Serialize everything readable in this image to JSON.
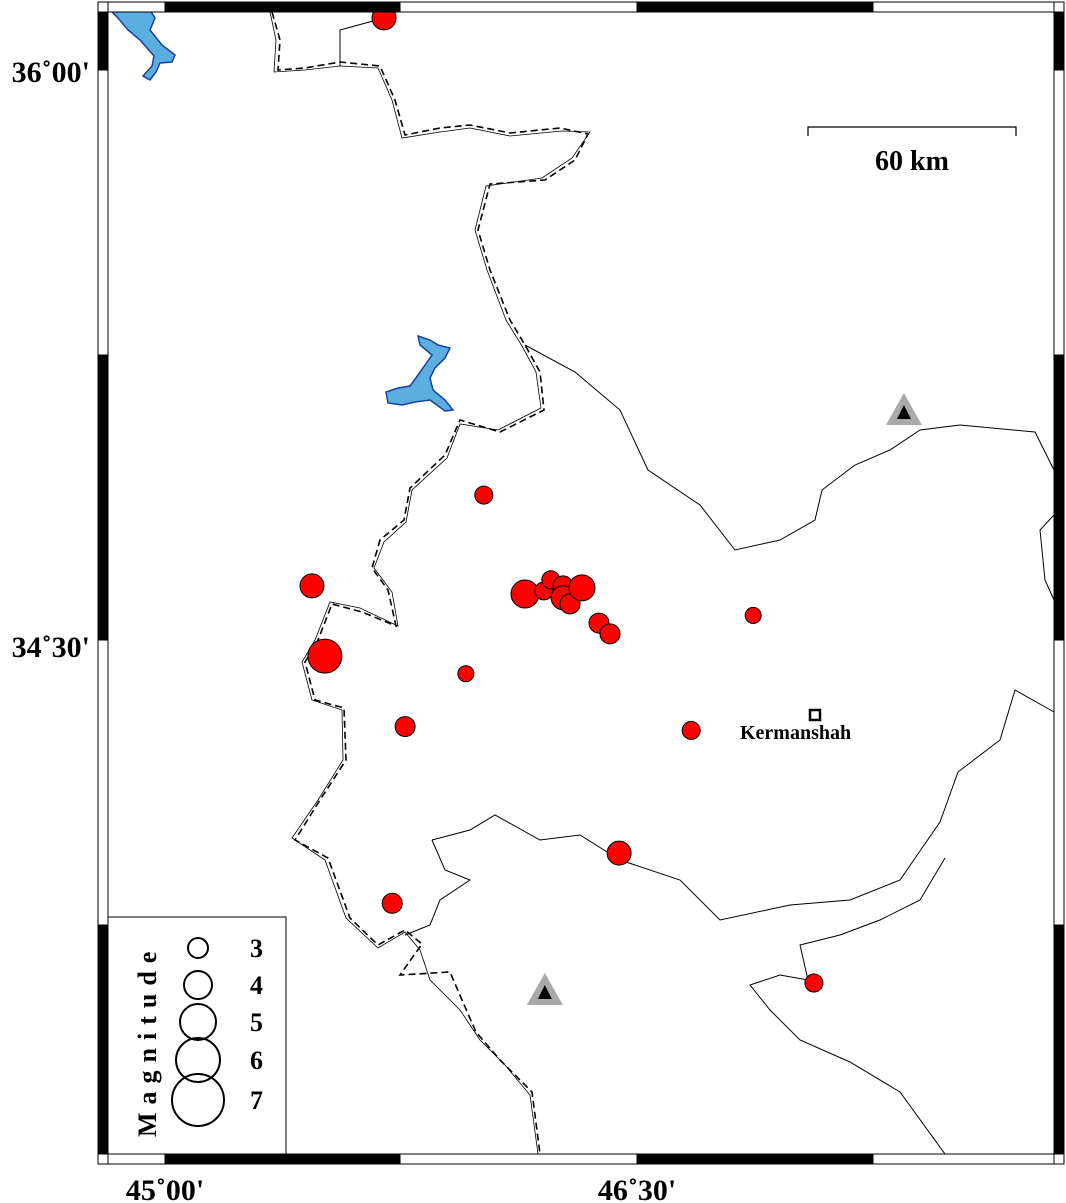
{
  "map": {
    "extent": {
      "lon": [
        44.79,
        47.79
      ],
      "lat": [
        33.17,
        36.17
      ]
    },
    "lon_ticks": [
      {
        "value": 45.0,
        "label": "45˚00'"
      },
      {
        "value": 46.5,
        "label": "46˚30'"
      }
    ],
    "lat_ticks": [
      {
        "value": 36.0,
        "label": "36˚00'"
      },
      {
        "value": 34.5,
        "label": "34˚30'"
      }
    ],
    "scale_bar": {
      "label": "60 km",
      "km": 60
    },
    "city": {
      "name": "Kermanshah",
      "lon": 47.065,
      "lat": 34.317
    },
    "colors": {
      "event": "#ff0000",
      "lake": "#5aaee0",
      "lake_edge": "#1b3f9e",
      "volcano": "#000000",
      "volcano_halo": "#a9a9a9"
    },
    "volcanoes": [
      {
        "lon": 47.348,
        "lat": 35.105
      },
      {
        "lon": 46.207,
        "lat": 33.592
      }
    ],
    "events": [
      {
        "lon": 45.696,
        "lat": 36.136,
        "mag": 3.5
      },
      {
        "lon": 46.013,
        "lat": 34.891,
        "mag": 2.75
      },
      {
        "lon": 45.467,
        "lat": 34.654,
        "mag": 3.5
      },
      {
        "lon": 45.508,
        "lat": 34.471,
        "mag": 4.75
      },
      {
        "lon": 46.144,
        "lat": 34.633,
        "mag": 4.0
      },
      {
        "lon": 46.204,
        "lat": 34.641,
        "mag": 2.75
      },
      {
        "lon": 46.226,
        "lat": 34.67,
        "mag": 2.75
      },
      {
        "lon": 46.265,
        "lat": 34.654,
        "mag": 3.0
      },
      {
        "lon": 46.265,
        "lat": 34.623,
        "mag": 3.5
      },
      {
        "lon": 46.287,
        "lat": 34.607,
        "mag": 3.0
      },
      {
        "lon": 46.325,
        "lat": 34.649,
        "mag": 3.75
      },
      {
        "lon": 46.379,
        "lat": 34.557,
        "mag": 3.0
      },
      {
        "lon": 46.414,
        "lat": 34.529,
        "mag": 3.0
      },
      {
        "lon": 46.869,
        "lat": 34.577,
        "mag": 2.5
      },
      {
        "lon": 45.956,
        "lat": 34.425,
        "mag": 2.5
      },
      {
        "lon": 45.763,
        "lat": 34.287,
        "mag": 3.0
      },
      {
        "lon": 46.672,
        "lat": 34.277,
        "mag": 2.75
      },
      {
        "lon": 46.443,
        "lat": 33.957,
        "mag": 3.5
      },
      {
        "lon": 45.722,
        "lat": 33.826,
        "mag": 3.0
      },
      {
        "lon": 47.062,
        "lat": 33.618,
        "mag": 2.75
      }
    ]
  },
  "legend": {
    "title": "Magnitude",
    "entries": [
      {
        "mag": 3,
        "label": "3"
      },
      {
        "mag": 4,
        "label": "4"
      },
      {
        "mag": 5,
        "label": "5"
      },
      {
        "mag": 6,
        "label": "6"
      },
      {
        "mag": 7,
        "label": "7"
      }
    ]
  }
}
